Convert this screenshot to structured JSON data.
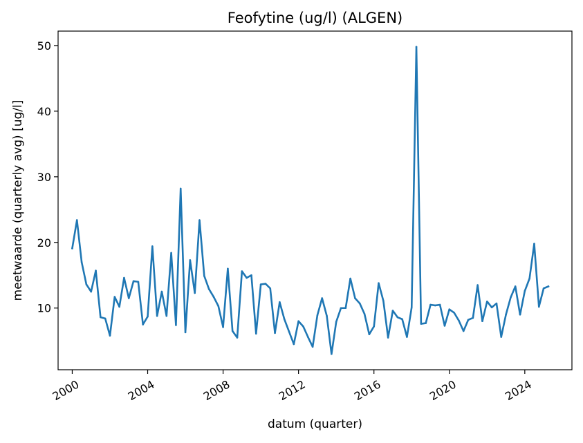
{
  "chart_data": {
    "type": "line",
    "title": "Feofytine (ug/l) (ALGEN)",
    "xlabel": "datum (quarter)",
    "ylabel": "meetwaarde (quarterly avg) [ug/l]",
    "xlim": [
      1999.25,
      2026.5
    ],
    "ylim": [
      0.6,
      52.2
    ],
    "x_ticks": [
      2000,
      2004,
      2008,
      2012,
      2016,
      2020,
      2024
    ],
    "x_tick_labels": [
      "2000",
      "2004",
      "2008",
      "2012",
      "2016",
      "2020",
      "2024"
    ],
    "y_ticks": [
      10,
      20,
      30,
      40,
      50
    ],
    "y_tick_labels": [
      "10",
      "20",
      "30",
      "40",
      "50"
    ],
    "grid": false,
    "legend": "none",
    "series": [
      {
        "color": "#1f77b4",
        "x": [
          2000.0,
          2000.25,
          2000.5,
          2000.75,
          2001.0,
          2001.25,
          2001.5,
          2001.75,
          2002.0,
          2002.25,
          2002.5,
          2002.75,
          2003.0,
          2003.25,
          2003.5,
          2003.75,
          2004.0,
          2004.25,
          2004.5,
          2004.75,
          2005.0,
          2005.25,
          2005.5,
          2005.75,
          2006.0,
          2006.25,
          2006.5,
          2006.75,
          2007.0,
          2007.25,
          2007.5,
          2007.75,
          2008.0,
          2008.25,
          2008.5,
          2008.75,
          2009.0,
          2009.25,
          2009.5,
          2009.75,
          2010.0,
          2010.25,
          2010.5,
          2010.75,
          2011.0,
          2011.25,
          2011.5,
          2011.75,
          2012.0,
          2012.25,
          2012.5,
          2012.75,
          2013.0,
          2013.25,
          2013.5,
          2013.75,
          2014.0,
          2014.25,
          2014.5,
          2014.75,
          2015.0,
          2015.25,
          2015.5,
          2015.75,
          2016.0,
          2016.25,
          2016.5,
          2016.75,
          2017.0,
          2017.25,
          2017.5,
          2017.75,
          2018.0,
          2018.25,
          2018.5,
          2018.75,
          2019.0,
          2019.25,
          2019.5,
          2019.75,
          2020.0,
          2020.25,
          2020.5,
          2020.75,
          2021.0,
          2021.25,
          2021.5,
          2021.75,
          2022.0,
          2022.25,
          2022.5,
          2022.75,
          2023.0,
          2023.25,
          2023.5,
          2023.75,
          2024.0,
          2024.25,
          2024.5,
          2024.75,
          2025.0,
          2025.25
        ],
        "y": [
          19.1,
          23.4,
          17.0,
          13.6,
          12.5,
          15.7,
          8.6,
          8.4,
          5.8,
          11.7,
          10.2,
          14.6,
          11.5,
          14.1,
          14.0,
          7.5,
          8.7,
          19.4,
          8.8,
          12.5,
          8.8,
          18.4,
          7.4,
          28.2,
          6.3,
          17.3,
          12.3,
          23.4,
          14.9,
          12.9,
          11.7,
          10.3,
          7.1,
          16.0,
          6.5,
          5.5,
          15.6,
          14.6,
          15.0,
          6.1,
          13.6,
          13.7,
          13.0,
          6.2,
          10.9,
          8.3,
          6.4,
          4.5,
          8.0,
          7.2,
          5.6,
          4.1,
          8.9,
          11.5,
          8.8,
          3.0,
          7.9,
          10.0,
          10.0,
          14.5,
          11.5,
          10.7,
          9.1,
          6.0,
          7.2,
          13.8,
          11.1,
          5.5,
          9.6,
          8.6,
          8.3,
          5.6,
          10.1,
          49.8,
          7.6,
          7.7,
          10.5,
          10.4,
          10.5,
          7.3,
          9.8,
          9.3,
          8.1,
          6.5,
          8.2,
          8.5,
          13.5,
          8.0,
          11.0,
          10.1,
          10.7,
          5.6,
          9.0,
          11.6,
          13.3,
          9.0,
          12.6,
          14.5,
          19.8,
          10.2,
          13.0,
          13.3
        ]
      }
    ]
  }
}
